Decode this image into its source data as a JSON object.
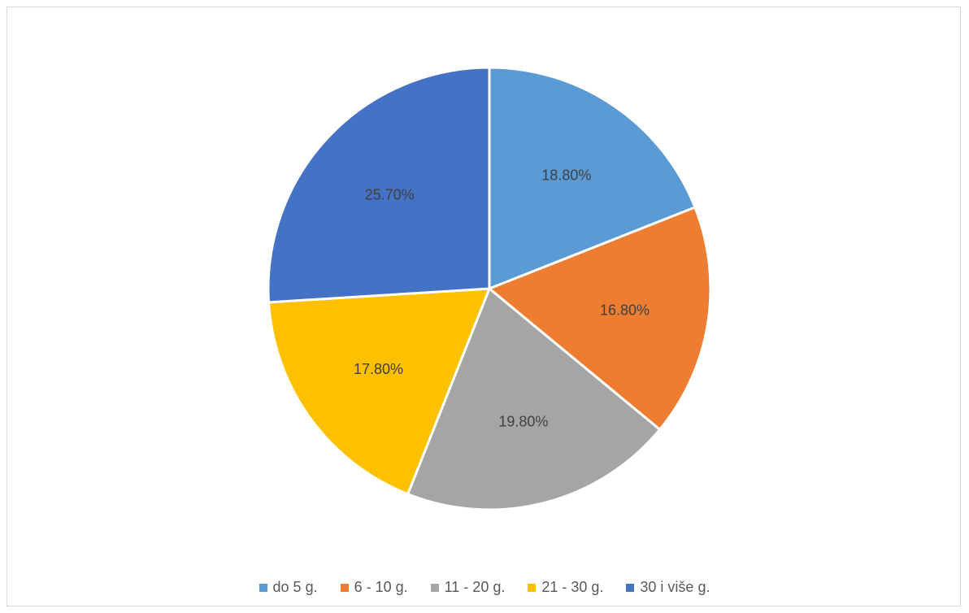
{
  "chart_data": {
    "type": "pie",
    "title": "",
    "categories": [
      "do 5 g.",
      "6 - 10 g.",
      "11 - 20 g.",
      "21 - 30 g.",
      "30 i više g."
    ],
    "values": [
      18.8,
      16.8,
      19.8,
      17.8,
      25.7
    ],
    "data_labels": [
      "18.80%",
      "16.80%",
      "19.80%",
      "17.80%",
      "25.70%"
    ],
    "colors": [
      "#5b9bd5",
      "#ed7d31",
      "#a5a5a5",
      "#ffc000",
      "#4472c4"
    ],
    "legend_position": "bottom",
    "start_angle": "12 o'clock",
    "direction": "clockwise"
  }
}
